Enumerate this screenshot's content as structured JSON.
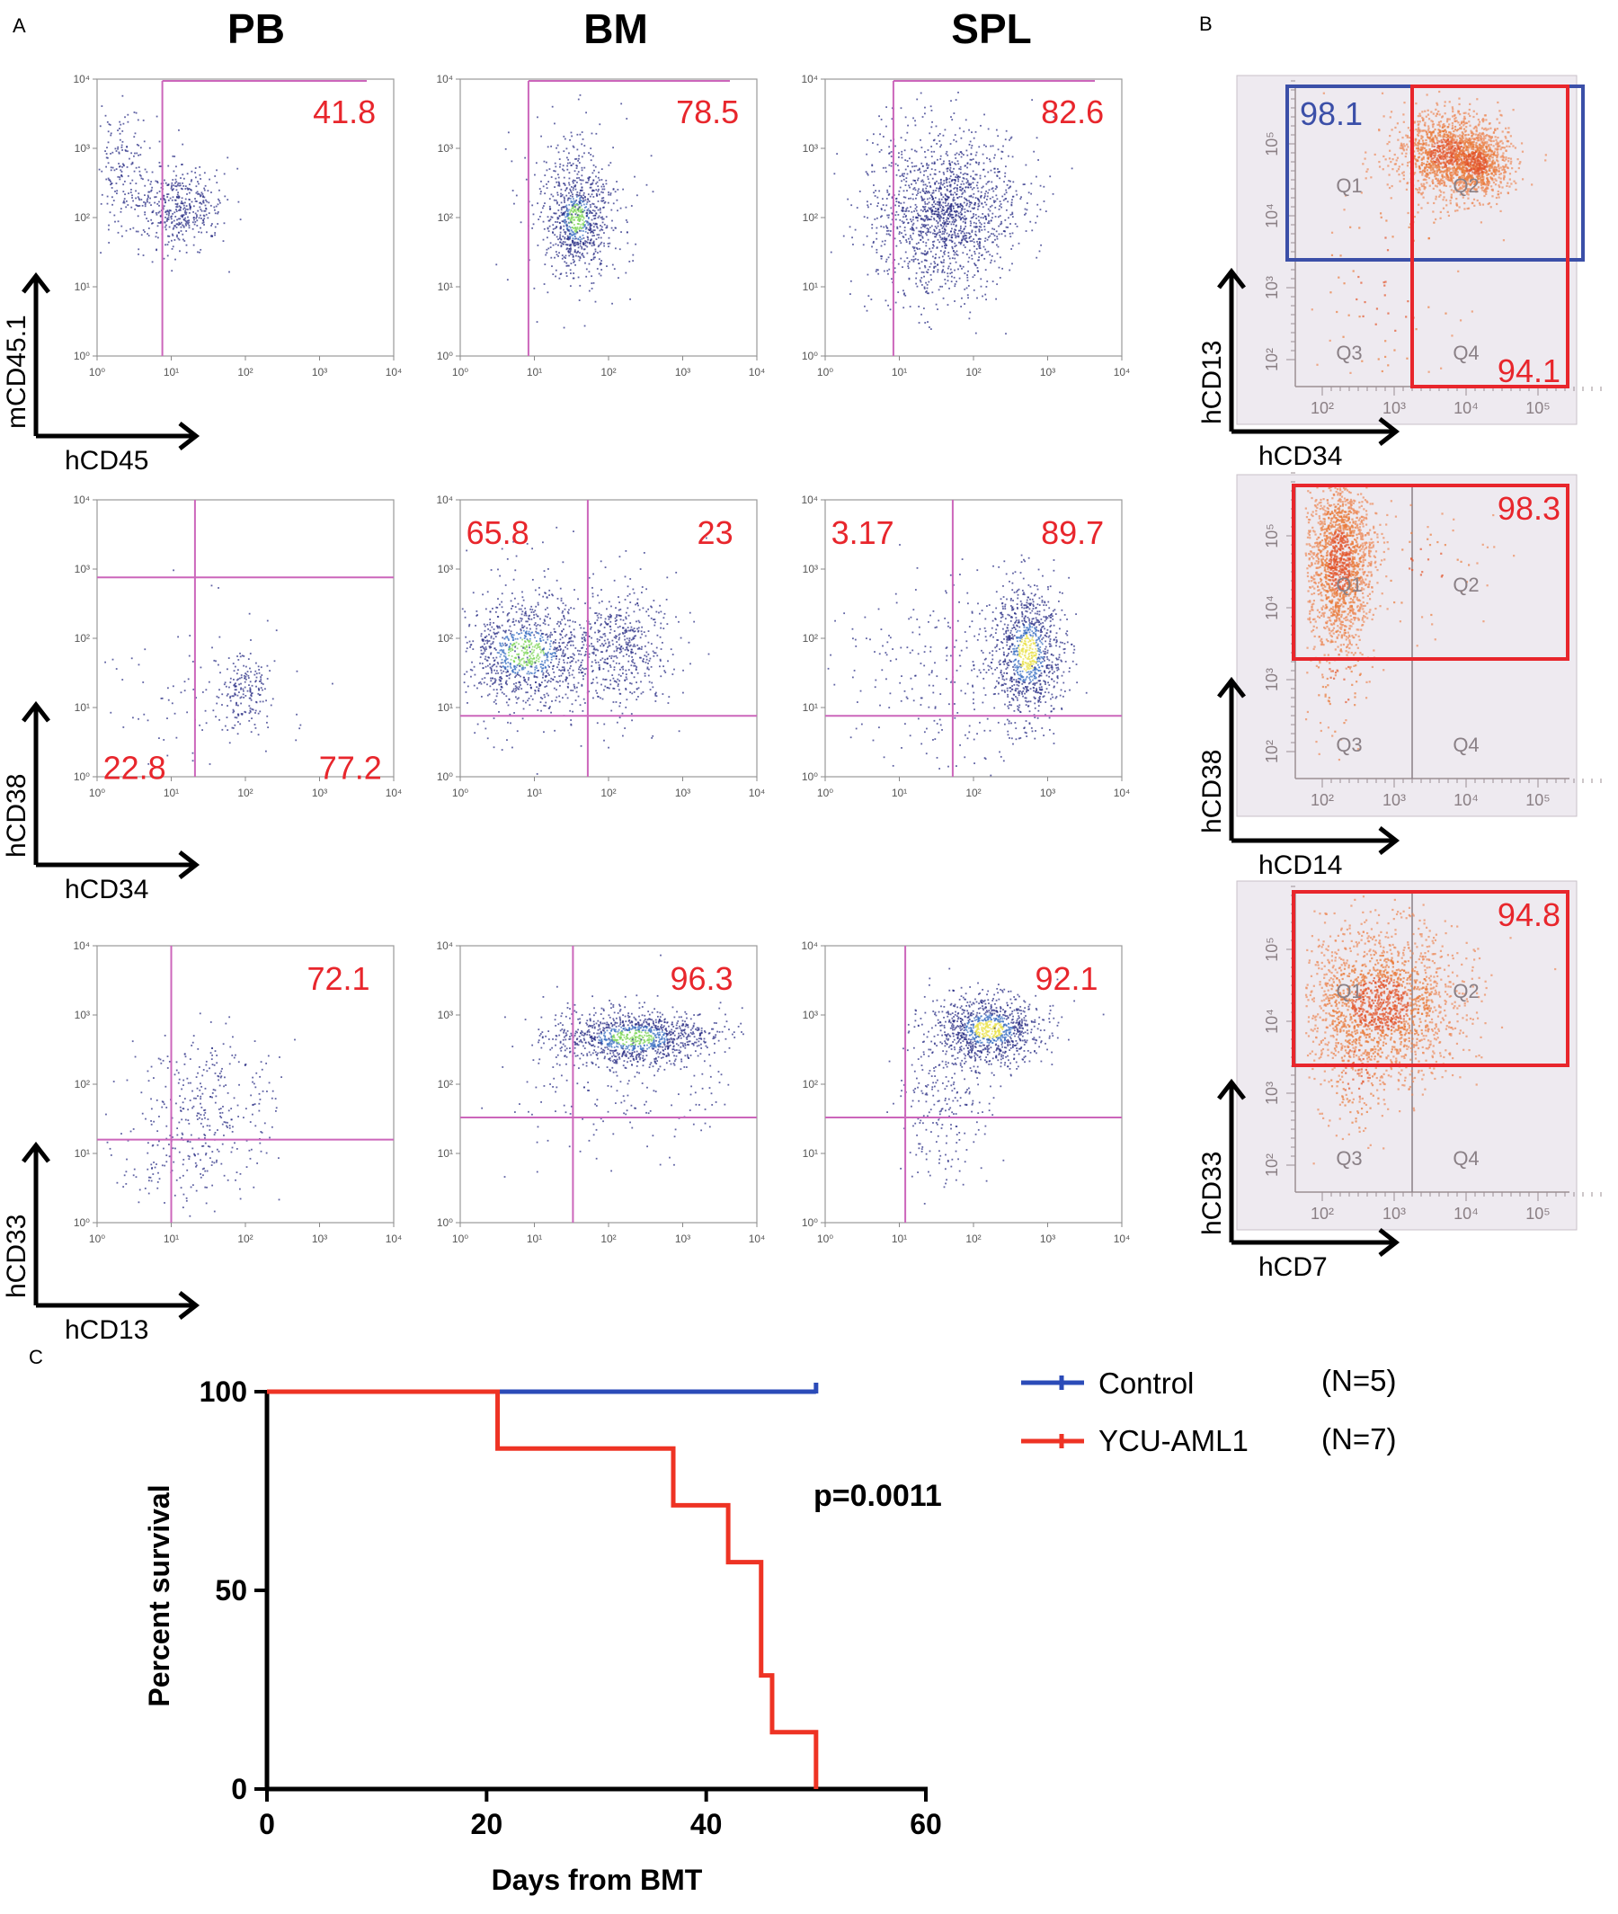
{
  "figure": {
    "panel_letters": {
      "a": "A",
      "b": "B",
      "c": "C"
    },
    "columns": [
      "PB",
      "BM",
      "SPL"
    ],
    "tick_labels": [
      "10⁰",
      "10¹",
      "10²",
      "10³",
      "10⁴"
    ],
    "b_tick_labels": [
      "10²",
      "10³",
      "10⁴",
      "10⁵"
    ],
    "axis_labels_a": [
      {
        "y": "mCD45.1",
        "x": "hCD45"
      },
      {
        "y": "hCD38",
        "x": "hCD34"
      },
      {
        "y": "hCD33",
        "x": "hCD13"
      }
    ],
    "axis_labels_b": [
      {
        "y": "hCD13",
        "x": "hCD34"
      },
      {
        "y": "hCD38",
        "x": "hCD14"
      },
      {
        "y": "hCD33",
        "x": "hCD7"
      }
    ],
    "quadrant_names": [
      "Q1",
      "Q2",
      "Q3",
      "Q4"
    ],
    "percentages_a": [
      [
        [
          "41.8"
        ],
        [
          "78.5"
        ],
        [
          "82.6"
        ]
      ],
      [
        [
          "22.8",
          "77.2"
        ],
        [
          "65.8",
          "23"
        ],
        [
          "3.17",
          "89.7"
        ]
      ],
      [
        [
          "72.1"
        ],
        [
          "96.3"
        ],
        [
          "92.1"
        ]
      ]
    ],
    "percentages_b": [
      {
        "blue": "98.1",
        "red": "94.1"
      },
      {
        "red": "98.3"
      },
      {
        "red": "94.8"
      }
    ],
    "colors": {
      "gate": "#cc66bb",
      "label": "#e8262c",
      "blue_gate": "#3b4fa8",
      "red_gate": "#e8262c",
      "dot": "#2b2f86",
      "orange": "#e4642c",
      "control": "#2b4bb8",
      "ycu": "#ee3324"
    }
  },
  "chart_data": {
    "type": "line",
    "subtype": "kaplan-meier",
    "xlabel": "Days from BMT",
    "ylabel": "Percent survival",
    "xlim": [
      0,
      60
    ],
    "ylim": [
      0,
      100
    ],
    "xticks": [
      0,
      20,
      40,
      60
    ],
    "yticks": [
      0,
      50,
      100
    ],
    "annotation": "p=0.0011",
    "legend_position": "top-right",
    "series": [
      {
        "name": "Control",
        "n_label": "(N=5)",
        "color": "#2b4bb8",
        "steps": [
          [
            0,
            100
          ],
          [
            50,
            100
          ]
        ]
      },
      {
        "name": "YCU-AML1",
        "n_label": "(N=7)",
        "color": "#ee3324",
        "steps": [
          [
            0,
            100
          ],
          [
            21,
            85.7
          ],
          [
            37,
            71.4
          ],
          [
            42,
            57.1
          ],
          [
            45,
            28.6
          ],
          [
            46,
            14.3
          ],
          [
            50,
            0
          ]
        ]
      }
    ]
  }
}
